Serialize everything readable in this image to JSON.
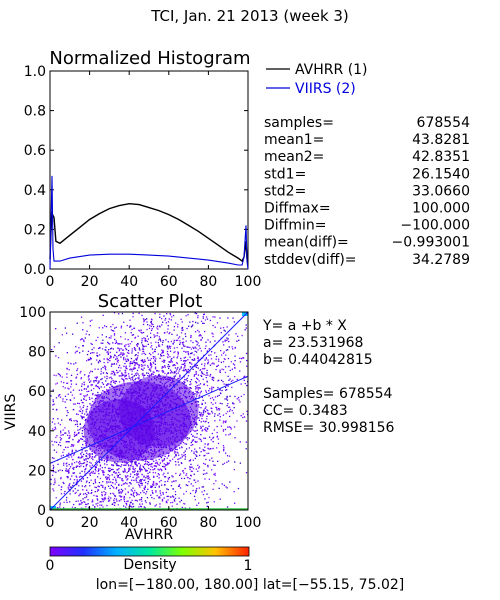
{
  "page_title": "TCI,  Jan. 21 2013 (week 3)",
  "chart_data": [
    {
      "type": "line",
      "title": "Normalized Histogram",
      "xlabel": "",
      "ylabel": "",
      "xlim": [
        0,
        100
      ],
      "ylim": [
        0.0,
        1.0
      ],
      "x_ticks": [
        "0",
        "20",
        "40",
        "60",
        "80",
        "100"
      ],
      "y_ticks": [
        "0.0",
        "0.2",
        "0.4",
        "0.6",
        "0.8",
        "1.0"
      ],
      "legend": "right",
      "series": [
        {
          "name": "AVHRR (1)",
          "color": "#000000",
          "points": [
            [
              0,
              0.05
            ],
            [
              0.5,
              0.19
            ],
            [
              1,
              0.28
            ],
            [
              2,
              0.26
            ],
            [
              3,
              0.14
            ],
            [
              5,
              0.13
            ],
            [
              10,
              0.17
            ],
            [
              15,
              0.21
            ],
            [
              20,
              0.25
            ],
            [
              25,
              0.28
            ],
            [
              30,
              0.305
            ],
            [
              35,
              0.32
            ],
            [
              40,
              0.33
            ],
            [
              45,
              0.325
            ],
            [
              50,
              0.31
            ],
            [
              55,
              0.295
            ],
            [
              60,
              0.275
            ],
            [
              65,
              0.25
            ],
            [
              70,
              0.22
            ],
            [
              75,
              0.19
            ],
            [
              80,
              0.155
            ],
            [
              85,
              0.12
            ],
            [
              90,
              0.085
            ],
            [
              95,
              0.055
            ],
            [
              97,
              0.04
            ],
            [
              98,
              0.06
            ],
            [
              99,
              0.14
            ],
            [
              99.5,
              0.05
            ]
          ]
        },
        {
          "name": "VIIRS (2)",
          "color": "#0000dd",
          "points": [
            [
              0,
              0.0
            ],
            [
              0.5,
              0.24
            ],
            [
              1,
              0.47
            ],
            [
              1.5,
              0.1
            ],
            [
              2,
              0.04
            ],
            [
              5,
              0.04
            ],
            [
              10,
              0.055
            ],
            [
              20,
              0.07
            ],
            [
              30,
              0.075
            ],
            [
              40,
              0.075
            ],
            [
              50,
              0.07
            ],
            [
              60,
              0.065
            ],
            [
              70,
              0.055
            ],
            [
              80,
              0.045
            ],
            [
              90,
              0.03
            ],
            [
              95,
              0.02
            ],
            [
              97,
              0.02
            ],
            [
              98,
              0.06
            ],
            [
              99,
              0.22
            ],
            [
              99.5,
              0.04
            ],
            [
              100,
              0.0
            ]
          ]
        }
      ],
      "stats": [
        {
          "label": "samples=",
          "value": "678554"
        },
        {
          "label": "mean1=",
          "value": "43.8281"
        },
        {
          "label": "mean2=",
          "value": "42.8351"
        },
        {
          "label": "std1=",
          "value": "26.1540"
        },
        {
          "label": "std2=",
          "value": "33.0660"
        },
        {
          "label": "Diffmax=",
          "value": "100.000"
        },
        {
          "label": "Diffmin=",
          "value": "−100.000"
        },
        {
          "label": "mean(diff)=",
          "value": "−0.993001"
        },
        {
          "label": "stddev(diff)=",
          "value": "34.2789"
        }
      ]
    },
    {
      "type": "scatter",
      "title": "Scatter Plot",
      "xlabel": "AVHRR",
      "ylabel": "VIIRS",
      "xlim": [
        0,
        100
      ],
      "ylim": [
        0,
        100
      ],
      "x_ticks": [
        "0",
        "20",
        "40",
        "60",
        "80",
        "100"
      ],
      "y_ticks": [
        "0",
        "20",
        "40",
        "60",
        "80",
        "100"
      ],
      "fit_line": {
        "intercept": 23.531968,
        "slope": 0.44042815,
        "color": "#1a1aff"
      },
      "one_to_one_line": {
        "color": "#1a1aff"
      },
      "annotations": {
        "equation": "Y= a +b * X",
        "a": "a= 23.531968",
        "b": "b= 0.44042815",
        "samples": "Samples= 678554",
        "cc": "CC=  0.3483",
        "rmse": "RMSE= 30.998156"
      }
    }
  ],
  "colorbar": {
    "label": "Density",
    "min_label": "0",
    "max_label": "1",
    "colors": [
      "#8000ff",
      "#2030ff",
      "#00b0ff",
      "#00e8a0",
      "#80ff00",
      "#ffc000",
      "#ff2000"
    ]
  },
  "footer": "lon=[−180.00, 180.00] lat=[−55.15, 75.02]"
}
